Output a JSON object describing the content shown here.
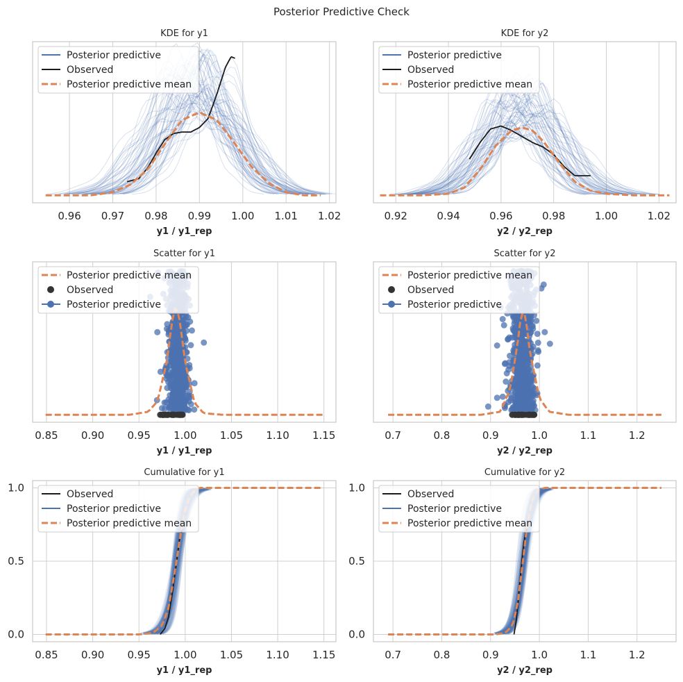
{
  "figure_title": "Posterior Predictive Check",
  "colors": {
    "posterior_predictive": "#4c72b0",
    "observed": "#1a1a1a",
    "posterior_predictive_mean": "#dd8452"
  },
  "chart_data": [
    {
      "type": "line",
      "title": "KDE for y1",
      "xlabel": "y1 / y1_rep",
      "xlim": [
        0.9515,
        1.0215
      ],
      "ylim": [
        0,
        1.07
      ],
      "xticks": [
        "0.96",
        "0.97",
        "0.98",
        "0.99",
        "1.00",
        "1.01",
        "1.02"
      ],
      "yticks": [],
      "grid": true,
      "legend_position": "top-left",
      "legend": [
        "Posterior predictive",
        "Observed",
        "Posterior predictive mean"
      ],
      "posterior_predictive_draws": "many overlapping thin translucent density curves spanning roughly 0.965 to 1.015",
      "series": [
        {
          "name": "Observed",
          "style": "solid",
          "x": [
            0.9733,
            0.976,
            0.978,
            0.98,
            0.982,
            0.984,
            0.986,
            0.988,
            0.99,
            0.992,
            0.994,
            0.996,
            0.9973,
            0.9982
          ],
          "y": [
            0.14,
            0.16,
            0.23,
            0.33,
            0.42,
            0.46,
            0.47,
            0.47,
            0.5,
            0.56,
            0.72,
            0.9,
            0.97,
            0.96
          ]
        },
        {
          "name": "Posterior predictive mean",
          "style": "dashed",
          "x": [
            0.9545,
            0.965,
            0.97,
            0.974,
            0.978,
            0.982,
            0.986,
            0.99,
            0.994,
            0.998,
            1.002,
            1.006,
            1.01,
            1.014,
            1.018
          ],
          "y": [
            0.05,
            0.05,
            0.07,
            0.12,
            0.22,
            0.39,
            0.55,
            0.6,
            0.55,
            0.4,
            0.24,
            0.13,
            0.07,
            0.05,
            0.05
          ]
        }
      ]
    },
    {
      "type": "line",
      "title": "KDE for y2",
      "xlabel": "y2 / y2_rep",
      "xlim": [
        0.9115,
        1.0265
      ],
      "ylim": [
        0,
        1.07
      ],
      "xticks": [
        "0.92",
        "0.94",
        "0.96",
        "0.98",
        "1.00",
        "1.02"
      ],
      "yticks": [],
      "grid": true,
      "legend_position": "top-left",
      "legend": [
        "Posterior predictive",
        "Observed",
        "Posterior predictive mean"
      ],
      "posterior_predictive_draws": "many overlapping thin translucent density curves spanning roughly 0.93 to 1.00",
      "series": [
        {
          "name": "Observed",
          "style": "solid",
          "x": [
            0.948,
            0.952,
            0.956,
            0.96,
            0.964,
            0.968,
            0.972,
            0.976,
            0.98,
            0.984,
            0.988,
            0.992,
            0.994
          ],
          "y": [
            0.29,
            0.4,
            0.49,
            0.51,
            0.48,
            0.44,
            0.4,
            0.37,
            0.32,
            0.24,
            0.18,
            0.18,
            0.18
          ]
        },
        {
          "name": "Posterior predictive mean",
          "style": "dashed",
          "x": [
            0.914,
            0.93,
            0.94,
            0.946,
            0.952,
            0.958,
            0.964,
            0.968,
            0.972,
            0.976,
            0.982,
            0.988,
            0.994,
            1.0,
            1.01,
            1.024
          ],
          "y": [
            0.05,
            0.05,
            0.06,
            0.1,
            0.22,
            0.38,
            0.48,
            0.5,
            0.48,
            0.41,
            0.27,
            0.14,
            0.08,
            0.06,
            0.05,
            0.05
          ]
        }
      ]
    },
    {
      "type": "scatter",
      "title": "Scatter for y1",
      "xlabel": "y1 / y1_rep",
      "xlim": [
        0.835,
        1.163
      ],
      "ylim": [
        0,
        1.07
      ],
      "xticks": [
        "0.85",
        "0.90",
        "0.95",
        "1.00",
        "1.05",
        "1.10",
        "1.15"
      ],
      "yticks": [],
      "grid": true,
      "legend_position": "top-left",
      "legend": [
        "Posterior predictive mean",
        "Observed",
        "Posterior predictive"
      ],
      "posterior_predictive_cloud": {
        "center": 0.992,
        "x_range": [
          0.955,
          1.015
        ]
      },
      "observed_points_range": [
        0.972,
        0.998
      ],
      "series": [
        {
          "name": "Posterior predictive mean",
          "style": "dashed",
          "x": [
            0.849,
            0.94,
            0.96,
            0.97,
            0.98,
            0.986,
            0.99,
            0.994,
            1.0,
            1.01,
            1.02,
            1.04,
            1.149
          ],
          "y": [
            0.05,
            0.05,
            0.07,
            0.14,
            0.4,
            0.68,
            0.78,
            0.68,
            0.4,
            0.13,
            0.06,
            0.05,
            0.05
          ]
        }
      ]
    },
    {
      "type": "scatter",
      "title": "Scatter for y2",
      "xlabel": "y2 / y2_rep",
      "xlim": [
        0.66,
        1.28
      ],
      "ylim": [
        0,
        1.07
      ],
      "xticks": [
        "0.7",
        "0.8",
        "0.9",
        "1.0",
        "1.1",
        "1.2"
      ],
      "yticks": [],
      "grid": true,
      "legend_position": "top-left",
      "legend": [
        "Posterior predictive mean",
        "Observed",
        "Posterior predictive"
      ],
      "posterior_predictive_cloud": {
        "center": 0.965,
        "x_range": [
          0.9,
          1.03
        ]
      },
      "observed_points_range": [
        0.94,
        0.99
      ],
      "series": [
        {
          "name": "Posterior predictive mean",
          "style": "dashed",
          "x": [
            0.69,
            0.88,
            0.92,
            0.94,
            0.955,
            0.962,
            0.967,
            0.972,
            0.98,
            1.0,
            1.02,
            1.06,
            1.25
          ],
          "y": [
            0.05,
            0.05,
            0.07,
            0.22,
            0.52,
            0.7,
            0.74,
            0.7,
            0.48,
            0.16,
            0.07,
            0.05,
            0.05
          ]
        }
      ]
    },
    {
      "type": "line",
      "title": "Cumulative for y1",
      "xlabel": "y1 / y1_rep",
      "xlim": [
        0.835,
        1.163
      ],
      "ylim": [
        -0.05,
        1.05
      ],
      "xticks": [
        "0.85",
        "0.90",
        "0.95",
        "1.00",
        "1.05",
        "1.10",
        "1.15"
      ],
      "yticks": [
        "0.0",
        "0.5",
        "1.0"
      ],
      "ytick_values": [
        0,
        0.5,
        1
      ],
      "grid": true,
      "legend_position": "top-left",
      "legend": [
        "Observed",
        "Posterior predictive",
        "Posterior predictive mean"
      ],
      "posterior_predictive_draws": "many overlapping translucent cumulative curves spanning roughly 0.96 to 1.02",
      "series": [
        {
          "name": "Observed",
          "style": "solid",
          "x": [
            0.973,
            0.978,
            0.982,
            0.986,
            0.99,
            0.994,
            0.997
          ],
          "y": [
            0.0,
            0.04,
            0.12,
            0.28,
            0.46,
            0.66,
            0.72
          ]
        },
        {
          "name": "Posterior predictive mean",
          "style": "dashed",
          "x": [
            0.849,
            0.95,
            0.965,
            0.975,
            0.982,
            0.988,
            0.993,
            0.998,
            1.004,
            1.01,
            1.015,
            1.149
          ],
          "y": [
            0.0,
            0.0,
            0.01,
            0.06,
            0.18,
            0.4,
            0.6,
            0.8,
            0.93,
            0.98,
            1.0,
            1.0
          ]
        }
      ]
    },
    {
      "type": "line",
      "title": "Cumulative for y2",
      "xlabel": "y2 / y2_rep",
      "xlim": [
        0.66,
        1.28
      ],
      "ylim": [
        -0.05,
        1.05
      ],
      "xticks": [
        "0.7",
        "0.8",
        "0.9",
        "1.0",
        "1.1",
        "1.2"
      ],
      "yticks": [
        "0.0",
        "0.5",
        "1.0"
      ],
      "ytick_values": [
        0,
        0.5,
        1
      ],
      "grid": true,
      "legend_position": "top-left",
      "legend": [
        "Observed",
        "Posterior predictive",
        "Posterior predictive mean"
      ],
      "posterior_predictive_draws": "many overlapping translucent cumulative curves spanning roughly 0.91 to 1.02",
      "series": [
        {
          "name": "Observed",
          "style": "solid",
          "x": [
            0.948,
            0.952,
            0.956,
            0.96,
            0.964,
            0.968,
            0.972,
            0.975
          ],
          "y": [
            0.0,
            0.08,
            0.2,
            0.36,
            0.5,
            0.62,
            0.7,
            0.72
          ]
        },
        {
          "name": "Posterior predictive mean",
          "style": "dashed",
          "x": [
            0.69,
            0.91,
            0.93,
            0.945,
            0.955,
            0.962,
            0.968,
            0.975,
            0.985,
            0.995,
            1.01,
            1.25
          ],
          "y": [
            0.0,
            0.0,
            0.01,
            0.06,
            0.2,
            0.38,
            0.55,
            0.75,
            0.92,
            0.98,
            1.0,
            1.0
          ]
        }
      ]
    }
  ]
}
